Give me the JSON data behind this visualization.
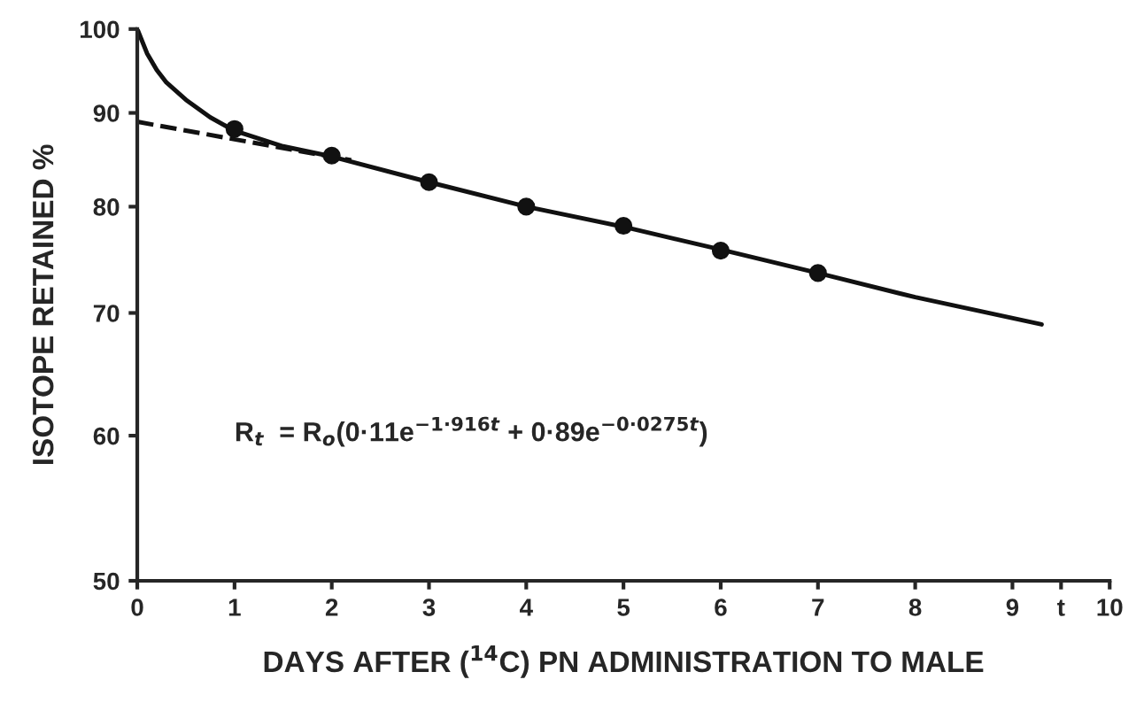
{
  "chart_data": {
    "type": "line",
    "xlabel": "DAYS AFTER ($^{14}$C) PN ADMINISTRATION TO MALE",
    "ylabel": "ISOTOPE RETAINED %",
    "log": "y",
    "xlim": [
      0,
      10
    ],
    "ylim": [
      50,
      100
    ],
    "xticks": [
      0,
      1,
      2,
      3,
      4,
      5,
      6,
      7,
      8,
      9,
      {
        "value": 9.5,
        "label": "t"
      },
      10
    ],
    "yticks": [
      50,
      60,
      70,
      80,
      90,
      100
    ],
    "grid": false,
    "legend": false,
    "series": [
      {
        "type": "line",
        "color": "#111111",
        "line_style": "solid",
        "marker": "none",
        "x": [
          0,
          0.1,
          0.2,
          0.3,
          0.5,
          0.75,
          1,
          1.5,
          2,
          3,
          4,
          5,
          6,
          7,
          8,
          9.3
        ],
        "values": [
          100,
          97,
          95,
          93.5,
          91.5,
          89.5,
          88,
          86.3,
          85.2,
          82.5,
          80,
          78,
          75.8,
          73.6,
          71.4,
          69
        ]
      },
      {
        "type": "line",
        "color": "#111111",
        "line_style": "dashed",
        "marker": "none",
        "x": [
          0,
          2.2
        ],
        "values": [
          89,
          84.8
        ]
      },
      {
        "type": "scatter",
        "color": "#111111",
        "marker": "circle",
        "x": [
          1,
          2,
          3,
          4,
          5,
          6,
          7
        ],
        "values": [
          88.2,
          85.3,
          82.5,
          80,
          78.1,
          75.7,
          73.6
        ]
      }
    ],
    "annotations": [
      "R$_{t}$  = R$_{o}$(0·11e$^{−1·916t}$ + 0·89e$^{−0·0275t}$)"
    ]
  }
}
